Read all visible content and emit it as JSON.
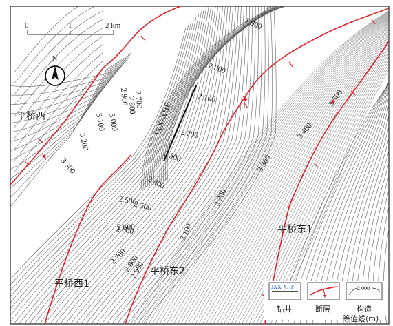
{
  "scale_bar": {
    "ticks": [
      "0",
      "1",
      "2 km"
    ]
  },
  "north_arrow": {
    "label": "N",
    "icon": "north-arrow-icon"
  },
  "well": {
    "name": "JXX-XHF",
    "color": "#1a5bbf"
  },
  "contour_labels": [
    "1 900",
    "2 000",
    "2 100",
    "2 200",
    "2 300",
    "2 400",
    "2 500",
    "2 600",
    "2 700",
    "2 800",
    "2 900",
    "3 000",
    "3 100",
    "3 200",
    "3 300",
    "3 400",
    "3 500",
    "2 500",
    "2 600",
    "2 700",
    "2 800",
    "2 900",
    "3 100",
    "3 200",
    "3 300"
  ],
  "regions": [
    "平桥西",
    "平桥东1",
    "平桥东2",
    "平桥西1"
  ],
  "legend": {
    "well_label": "钻井",
    "fault_label": "断层",
    "contour_label": "构造",
    "contour_label2": "等值线(m)",
    "well_sample": "JXX-XHF",
    "contour_sample": "2 000"
  },
  "colors": {
    "fault": "#e0202a",
    "contour": "#555555",
    "frame": "#222222",
    "well_line": "#111111"
  }
}
